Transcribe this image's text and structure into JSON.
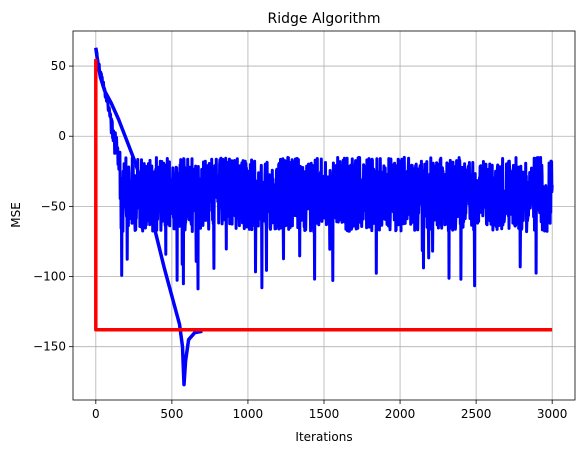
{
  "chart_data": {
    "type": "line",
    "title": "Ridge Algorithm",
    "xlabel": "Iterations",
    "ylabel": "MSE",
    "xlim": [
      -150,
      3150
    ],
    "ylim": [
      -188,
      75
    ],
    "xticks": [
      0,
      500,
      1000,
      1500,
      2000,
      2500,
      3000
    ],
    "yticks": [
      50,
      0,
      -50,
      -100,
      -150
    ],
    "grid": true,
    "series": [
      {
        "color": "#0000ff",
        "description": "noisy descent: drops from ~63 to ~-15 by iteration 200, then oscillates between about -15 and -70 (occasional spikes to -110) up to iteration 3000",
        "envelope_upper": -15,
        "envelope_lower": -68,
        "start": 63
      },
      {
        "color": "#0000ff",
        "description": "smooth curve from 63 at iteration 0 decreasing to about -135 at iteration 550, dipping to -177 at iteration 580, then recovering to about -139",
        "points": [
          [
            0,
            63
          ],
          [
            10,
            55
          ],
          [
            30,
            42
          ],
          [
            60,
            32
          ],
          [
            100,
            24
          ],
          [
            150,
            12
          ],
          [
            200,
            -2
          ],
          [
            250,
            -16
          ],
          [
            300,
            -32
          ],
          [
            350,
            -50
          ],
          [
            400,
            -72
          ],
          [
            450,
            -94
          ],
          [
            500,
            -114
          ],
          [
            550,
            -134
          ],
          [
            570,
            -150
          ],
          [
            580,
            -177
          ],
          [
            590,
            -160
          ],
          [
            610,
            -145
          ],
          [
            650,
            -140
          ],
          [
            700,
            -139
          ]
        ]
      },
      {
        "color": "#ff0000",
        "description": "drops vertically from ~55 to -138 at iteration 0, then flat at -138",
        "points": [
          [
            0,
            55
          ],
          [
            0,
            -138
          ],
          [
            3000,
            -138
          ]
        ]
      }
    ]
  }
}
